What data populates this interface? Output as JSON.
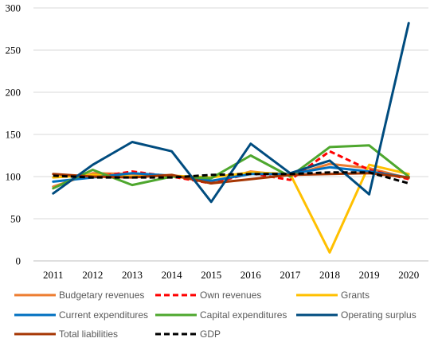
{
  "chart_data": {
    "type": "line",
    "title": "",
    "xlabel": "",
    "ylabel": "",
    "x": [
      "2011",
      "2012",
      "2013",
      "2014",
      "2015",
      "2016",
      "2017",
      "2018",
      "2019",
      "2020"
    ],
    "ylim": [
      0,
      300
    ],
    "yticks": [
      "0",
      "50",
      "100",
      "150",
      "200",
      "250",
      "300"
    ],
    "grid": "horizontal",
    "legend_position": "bottom",
    "series": [
      {
        "name": "Budgetary revenues",
        "color": "#ED7D31",
        "dash": "solid",
        "values": [
          88,
          104,
          103,
          101,
          93,
          106,
          101,
          115,
          110,
          98
        ]
      },
      {
        "name": "Own revenues",
        "color": "#FF0000",
        "dash": "dashed",
        "values": [
          101,
          99,
          106,
          100,
          92,
          104,
          96,
          130,
          108,
          97
        ]
      },
      {
        "name": "Grants",
        "color": "#FFC000",
        "dash": "solid",
        "values": [
          99,
          102,
          100,
          101,
          99,
          105,
          103,
          10,
          114,
          103
        ]
      },
      {
        "name": "Current expenditures",
        "color": "#0070C0",
        "dash": "solid",
        "values": [
          94,
          99,
          104,
          101,
          95,
          103,
          103,
          111,
          106,
          99
        ]
      },
      {
        "name": "Capital expenditures",
        "color": "#4EA72E",
        "dash": "solid",
        "values": [
          86,
          108,
          90,
          100,
          98,
          125,
          100,
          135,
          137,
          100
        ]
      },
      {
        "name": "Operating surplus",
        "color": "#004C7F",
        "dash": "solid",
        "values": [
          80,
          114,
          141,
          130,
          70,
          139,
          104,
          119,
          79,
          282
        ]
      },
      {
        "name": "Total liabilities",
        "color": "#A63603",
        "dash": "solid",
        "values": [
          103,
          100,
          99,
          102,
          92,
          97,
          102,
          103,
          104,
          99
        ]
      },
      {
        "name": "GDP",
        "color": "#000000",
        "dash": "dashed",
        "values": [
          101,
          99,
          99,
          99,
          102,
          103,
          103,
          105,
          105,
          92
        ]
      }
    ]
  }
}
